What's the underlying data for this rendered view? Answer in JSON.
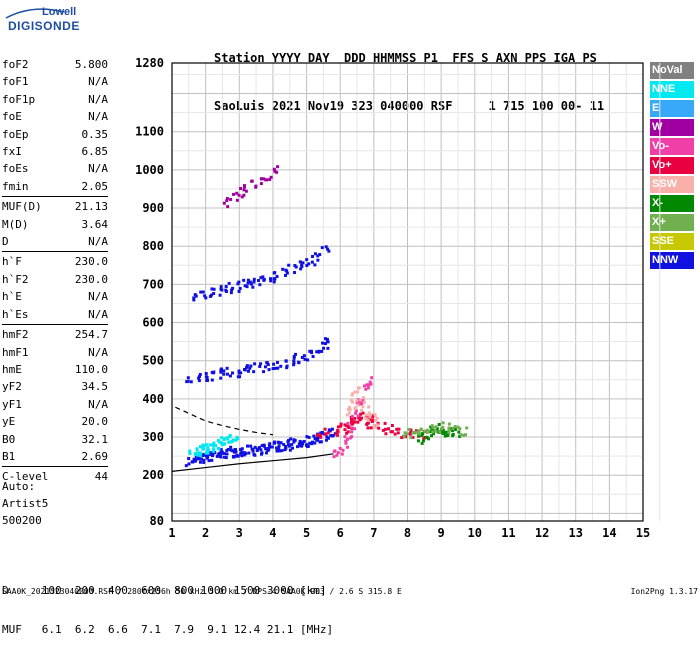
{
  "logo": {
    "top": "Lowell",
    "bottom": "DIGISONDE"
  },
  "header": {
    "line1": "Station YYYY DAY  DDD HHMMSS P1  FFS S AXN PPS IGA PS",
    "line2": "SaoLuis 2021 Nov19 323 040000 RSF     1 715 100 00- 11"
  },
  "params": {
    "group1": [
      {
        "k": "foF2",
        "v": "5.800"
      },
      {
        "k": "foF1",
        "v": "N/A"
      },
      {
        "k": "foF1p",
        "v": "N/A"
      },
      {
        "k": "foE",
        "v": "N/A"
      },
      {
        "k": "foEp",
        "v": "0.35"
      },
      {
        "k": "fxI",
        "v": "6.85"
      },
      {
        "k": "foEs",
        "v": "N/A"
      },
      {
        "k": "fmin",
        "v": "2.05"
      }
    ],
    "group2": [
      {
        "k": "MUF(D)",
        "v": "21.13"
      },
      {
        "k": "M(D)",
        "v": "3.64"
      },
      {
        "k": "D",
        "v": "N/A"
      }
    ],
    "group3": [
      {
        "k": "h`F",
        "v": "230.0"
      },
      {
        "k": "h`F2",
        "v": "230.0"
      },
      {
        "k": "h`E",
        "v": "N/A"
      },
      {
        "k": "h`Es",
        "v": "N/A"
      }
    ],
    "group4": [
      {
        "k": "hmF2",
        "v": "254.7"
      },
      {
        "k": "hmF1",
        "v": "N/A"
      },
      {
        "k": "hmE",
        "v": "110.0"
      },
      {
        "k": "yF2",
        "v": "34.5"
      },
      {
        "k": "yF1",
        "v": "N/A"
      },
      {
        "k": "yE",
        "v": "20.0"
      },
      {
        "k": "B0",
        "v": "32.1"
      },
      {
        "k": "B1",
        "v": "2.69"
      }
    ],
    "group5": [
      {
        "k": "C-level",
        "v": "44"
      }
    ]
  },
  "auto": {
    "line1": "Auto:",
    "line2": "Artist5",
    "line3": "500200"
  },
  "legend": [
    {
      "label": "NoVal",
      "color": "#808080"
    },
    {
      "label": "NNE",
      "color": "#00e8f0"
    },
    {
      "label": "E",
      "color": "#38a8f8"
    },
    {
      "label": "W",
      "color": "#a000a0"
    },
    {
      "label": "Vo-",
      "color": "#f040a8"
    },
    {
      "label": "Vo+",
      "color": "#e80040"
    },
    {
      "label": "SSW",
      "color": "#f8b0a8"
    },
    {
      "label": "X-",
      "color": "#008800"
    },
    {
      "label": "X+",
      "color": "#70b050"
    },
    {
      "label": "SSE",
      "color": "#c8c800"
    },
    {
      "label": "NNW",
      "color": "#1010e0"
    }
  ],
  "muf_table": {
    "line1": "D     100  200  400  600  800 1000 1500 3000 [km]",
    "line2": "MUF   6.1  6.2  6.6  7.1  7.9  9.1 12.4 21.1 [MHz]"
  },
  "footer": {
    "left": "SAA0K_2021323040000.RSF / 280fx256h 50 kHz 5.0 km / DPS-4 SAA0K 903 / 2.6 S 315.8 E",
    "right": "Ion2Png 1.3.17"
  },
  "chart_data": {
    "type": "scatter",
    "xlim": [
      1,
      15
    ],
    "ylim": [
      80,
      1280
    ],
    "x_ticks": [
      1,
      2,
      3,
      4,
      5,
      6,
      7,
      8,
      9,
      10,
      11,
      12,
      13,
      14,
      15
    ],
    "y_ticks": [
      80,
      200,
      300,
      400,
      500,
      600,
      700,
      800,
      900,
      1000,
      1100,
      1280
    ],
    "grid": true,
    "legend_position": "right",
    "traces": [
      {
        "color": "#1010e0",
        "x": [
          1.5,
          1.6,
          1.7,
          1.8,
          1.9,
          2.0,
          2.1,
          2.2,
          2.3,
          2.4,
          2.5,
          2.6,
          2.7,
          2.8,
          2.9,
          3.0,
          3.1,
          3.2,
          3.3,
          3.4,
          3.5,
          3.6,
          3.7,
          3.8,
          3.9,
          4.0,
          4.1,
          4.2,
          4.3,
          4.4,
          4.5,
          4.6,
          4.7,
          4.8,
          4.9,
          5.0,
          5.1,
          5.2,
          5.3,
          5.4,
          5.5,
          5.6,
          5.7
        ],
        "y": [
          240,
          244,
          246,
          248,
          250,
          252,
          254,
          256,
          258,
          258,
          260,
          262,
          262,
          264,
          264,
          266,
          266,
          268,
          268,
          270,
          272,
          272,
          274,
          274,
          276,
          278,
          278,
          280,
          282,
          282,
          284,
          286,
          288,
          290,
          292,
          294,
          296,
          298,
          300,
          302,
          306,
          310,
          314
        ]
      },
      {
        "color": "#1010e0",
        "x": [
          1.5,
          1.7,
          1.9,
          2.1,
          2.3,
          2.5,
          2.7,
          2.9,
          3.1,
          3.3,
          3.5,
          3.7,
          3.9,
          4.1,
          4.3,
          4.5,
          4.7,
          4.9,
          5.1,
          5.3,
          5.5,
          5.6
        ],
        "y": [
          452,
          456,
          460,
          464,
          468,
          470,
          472,
          474,
          478,
          480,
          484,
          486,
          490,
          494,
          498,
          502,
          508,
          514,
          522,
          530,
          540,
          550
        ]
      },
      {
        "color": "#1010e0",
        "x": [
          1.7,
          1.9,
          2.1,
          2.3,
          2.5,
          2.7,
          2.9,
          3.1,
          3.3,
          3.5,
          3.7,
          3.9,
          4.1,
          4.3,
          4.5,
          4.7,
          4.9,
          5.1,
          5.3,
          5.5
        ],
        "y": [
          672,
          676,
          682,
          686,
          690,
          694,
          698,
          702,
          708,
          712,
          718,
          722,
          728,
          734,
          742,
          750,
          758,
          768,
          780,
          792
        ]
      },
      {
        "color": "#a000a0",
        "x": [
          2.6,
          2.8,
          3.0,
          3.2,
          3.4,
          3.6,
          3.8,
          4.0
        ],
        "y": [
          916,
          930,
          942,
          952,
          968,
          978,
          990,
          1004
        ]
      },
      {
        "color": "#00e8f0",
        "x": [
          1.6,
          1.7,
          1.8,
          1.9,
          2.0,
          2.1,
          2.2,
          2.3,
          2.4,
          2.5,
          2.6,
          2.7,
          2.8
        ],
        "y": [
          262,
          266,
          268,
          270,
          272,
          274,
          276,
          278,
          286,
          290,
          296,
          300,
          304
        ]
      },
      {
        "color": "#e80040",
        "x": [
          5.4,
          5.6,
          5.8,
          6.0,
          6.1,
          6.2,
          6.3,
          6.4,
          6.5,
          6.6,
          6.7,
          6.8,
          6.9,
          7.0,
          7.2,
          7.4,
          7.6,
          7.8,
          8.0,
          8.2,
          8.4
        ],
        "y": [
          310,
          312,
          318,
          320,
          326,
          332,
          340,
          348,
          352,
          356,
          344,
          340,
          350,
          336,
          330,
          322,
          318,
          314,
          318,
          312,
          308
        ]
      },
      {
        "color": "#008800",
        "x": [
          8.4,
          8.5,
          8.6,
          8.7,
          8.8,
          8.9,
          9.0,
          9.1,
          9.2,
          9.3,
          9.4
        ],
        "y": [
          300,
          306,
          312,
          318,
          322,
          324,
          322,
          318,
          314,
          316,
          318
        ]
      },
      {
        "color": "#70b050",
        "x": [
          7.8,
          8.0,
          8.2,
          8.4,
          8.6,
          8.8,
          9.0,
          9.2,
          9.4,
          9.6
        ],
        "y": [
          306,
          312,
          316,
          320,
          324,
          326,
          328,
          326,
          324,
          320
        ]
      },
      {
        "color": "#f040a8",
        "x": [
          5.8,
          6.0,
          6.1,
          6.2,
          6.3,
          6.4,
          6.5,
          6.6,
          6.7,
          6.8
        ],
        "y": [
          260,
          272,
          290,
          310,
          330,
          360,
          390,
          410,
          430,
          450
        ]
      },
      {
        "color": "#f8b0a8",
        "x": [
          6.2,
          6.3,
          6.4,
          6.5,
          6.6,
          6.7,
          6.8,
          6.9,
          7.0
        ],
        "y": [
          370,
          390,
          410,
          420,
          400,
          380,
          360,
          350,
          340
        ]
      }
    ],
    "curves": [
      {
        "style": "solid",
        "x": [
          1.0,
          2.0,
          3.0,
          4.0,
          5.0,
          5.8
        ],
        "y": [
          210,
          220,
          230,
          238,
          246,
          256
        ]
      },
      {
        "style": "dashed",
        "x": [
          1.1,
          1.5,
          2.0,
          2.5,
          3.0,
          3.5,
          4.0
        ],
        "y": [
          378,
          362,
          342,
          330,
          320,
          312,
          306
        ]
      }
    ]
  }
}
